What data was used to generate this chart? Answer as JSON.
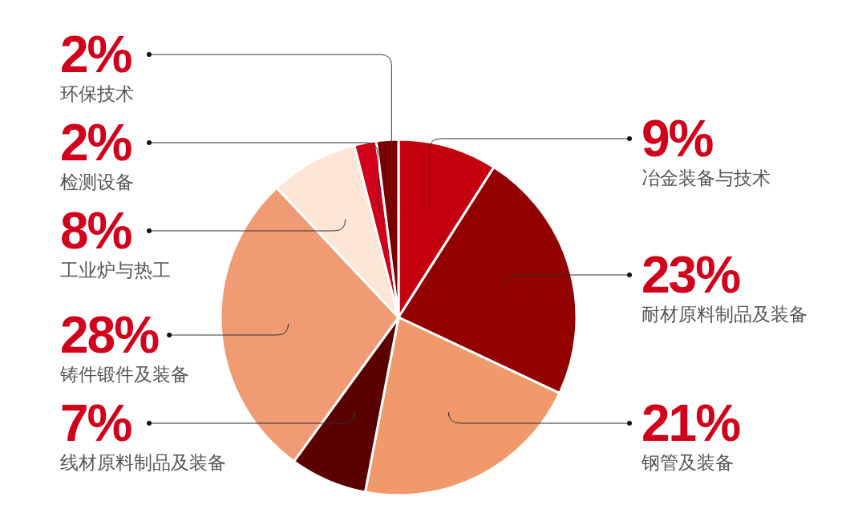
{
  "chart_data": {
    "type": "pie",
    "categories": [
      "冶金装备与技术",
      "耐材原料制品及装备",
      "钢管及装备",
      "线材原料制品及装备",
      "铸件锻件及装备",
      "工业炉与热工",
      "检测设备",
      "环保技术"
    ],
    "values": [
      9,
      23,
      21,
      7,
      28,
      8,
      2,
      2
    ],
    "value_labels": [
      "9%",
      "23%",
      "21%",
      "7%",
      "28%",
      "8%",
      "2%",
      "2%"
    ],
    "colors": [
      "#c4000e",
      "#930000",
      "#f0996b",
      "#5a0000",
      "#f09b74",
      "#fde6d6",
      "#d1001b",
      "#7a0000"
    ]
  }
}
